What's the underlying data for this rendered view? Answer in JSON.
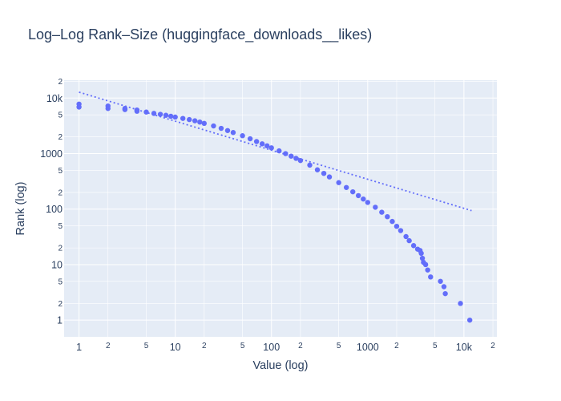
{
  "chart_data": {
    "type": "scatter",
    "title": "Log–Log Rank–Size (huggingface_downloads__likes)",
    "xlabel": "Value (log)",
    "ylabel": "Rank (log)",
    "x_scale": "log",
    "y_scale": "log",
    "xlim": [
      0.7,
      22000
    ],
    "ylim": [
      0.5,
      21000
    ],
    "grid": true,
    "colors": {
      "points": "#636efa",
      "fit_line": "#636efa",
      "plot_bg": "#e5ecf6",
      "grid": "#ffffff"
    },
    "x_major_ticks": [
      {
        "value": 1,
        "label": "1"
      },
      {
        "value": 10,
        "label": "10"
      },
      {
        "value": 100,
        "label": "100"
      },
      {
        "value": 1000,
        "label": "1000"
      },
      {
        "value": 10000,
        "label": "10k"
      }
    ],
    "x_minor_ticks": [
      {
        "value": 2,
        "label": "2"
      },
      {
        "value": 5,
        "label": "5"
      },
      {
        "value": 20,
        "label": "2"
      },
      {
        "value": 50,
        "label": "5"
      },
      {
        "value": 200,
        "label": "2"
      },
      {
        "value": 500,
        "label": "5"
      },
      {
        "value": 2000,
        "label": "2"
      },
      {
        "value": 5000,
        "label": "5"
      },
      {
        "value": 20000,
        "label": "2"
      }
    ],
    "y_major_ticks": [
      {
        "value": 1,
        "label": "1"
      },
      {
        "value": 10,
        "label": "10"
      },
      {
        "value": 100,
        "label": "100"
      },
      {
        "value": 1000,
        "label": "1000"
      },
      {
        "value": 10000,
        "label": "10k"
      }
    ],
    "y_minor_ticks": [
      {
        "value": 2,
        "label": "2"
      },
      {
        "value": 5,
        "label": "5"
      },
      {
        "value": 20,
        "label": "2"
      },
      {
        "value": 50,
        "label": "5"
      },
      {
        "value": 200,
        "label": "2"
      },
      {
        "value": 500,
        "label": "5"
      },
      {
        "value": 2000,
        "label": "2"
      },
      {
        "value": 5000,
        "label": "5"
      },
      {
        "value": 20000,
        "label": "2"
      }
    ],
    "fit_line": {
      "x": [
        1,
        12000
      ],
      "y": [
        12800,
        94
      ]
    },
    "points": {
      "x": [
        1,
        1,
        2,
        2,
        3,
        3,
        4,
        4,
        5,
        6,
        7,
        8,
        9,
        10,
        12,
        14,
        16,
        18,
        20,
        25,
        30,
        35,
        40,
        50,
        60,
        70,
        80,
        90,
        100,
        120,
        140,
        160,
        180,
        200,
        250,
        300,
        350,
        400,
        500,
        600,
        700,
        800,
        900,
        1000,
        1200,
        1400,
        1600,
        1800,
        2000,
        2200,
        2500,
        2700,
        3000,
        3300,
        3500,
        3600,
        3700,
        3800,
        4000,
        4200,
        4500,
        5700,
        6200,
        6400,
        9200,
        11500
      ],
      "y": [
        7800,
        6900,
        7200,
        6500,
        6500,
        6200,
        6100,
        5800,
        5600,
        5300,
        5100,
        4900,
        4700,
        4550,
        4300,
        4100,
        3900,
        3700,
        3500,
        3150,
        2850,
        2600,
        2400,
        2100,
        1850,
        1650,
        1500,
        1380,
        1270,
        1120,
        1000,
        900,
        820,
        750,
        620,
        510,
        440,
        380,
        300,
        245,
        205,
        175,
        152,
        132,
        108,
        88,
        73,
        60,
        49,
        41,
        32,
        27,
        22,
        19,
        18,
        16,
        13,
        11,
        10,
        8,
        6,
        5,
        4,
        3,
        2,
        1
      ]
    }
  }
}
